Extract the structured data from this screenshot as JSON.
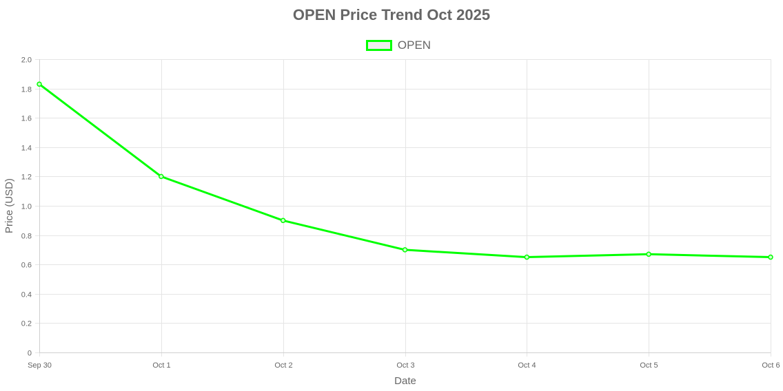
{
  "chart_data": {
    "type": "line",
    "title": "OPEN Price Trend Oct 2025",
    "xlabel": "Date",
    "ylabel": "Price (USD)",
    "categories": [
      "Sep 30",
      "Oct 1",
      "Oct 2",
      "Oct 3",
      "Oct 4",
      "Oct 5",
      "Oct 6"
    ],
    "series": [
      {
        "name": "OPEN",
        "values": [
          1.83,
          1.2,
          0.9,
          0.7,
          0.65,
          0.67,
          0.65
        ],
        "color": "#00ff00"
      }
    ],
    "ylim": [
      0,
      2.0
    ],
    "yticks": [
      "0",
      "0.2",
      "0.4",
      "0.6",
      "0.8",
      "1.0",
      "1.2",
      "1.4",
      "1.6",
      "1.8",
      "2.0"
    ],
    "grid": true,
    "legend_position": "top-center"
  }
}
